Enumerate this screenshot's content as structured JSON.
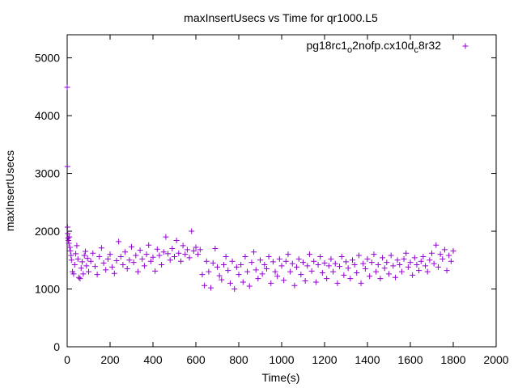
{
  "chart_data": {
    "type": "scatter",
    "title": "maxInsertUsecs vs Time for qr1000.L5",
    "xlabel": "Time(s)",
    "ylabel": "maxInsertUsecs",
    "xlim": [
      0,
      2000
    ],
    "ylim": [
      0,
      5400
    ],
    "xticks": [
      0,
      200,
      400,
      600,
      800,
      1000,
      1200,
      1400,
      1600,
      1800,
      2000
    ],
    "yticks": [
      0,
      1000,
      2000,
      3000,
      4000,
      5000
    ],
    "legend_position": "top-right",
    "grid": false,
    "marker": "plus",
    "color": "#9400d3",
    "legend": {
      "name_main": "pg18rc1",
      "name_sub1": "o",
      "name_mid": "2nofp.cx10d",
      "name_sub2": "c",
      "name_end": "8r32"
    },
    "series": [
      {
        "name": "pg18rc1_o2nofp.cx10d_c8r32",
        "points": [
          [
            0,
            4490
          ],
          [
            1,
            3120
          ],
          [
            2,
            2070
          ],
          [
            3,
            1960
          ],
          [
            4,
            1880
          ],
          [
            6,
            1840
          ],
          [
            8,
            1790
          ],
          [
            10,
            1900
          ],
          [
            12,
            1720
          ],
          [
            15,
            1660
          ],
          [
            18,
            1580
          ],
          [
            20,
            1500
          ],
          [
            25,
            1300
          ],
          [
            30,
            1260
          ],
          [
            35,
            1420
          ],
          [
            40,
            1610
          ],
          [
            45,
            1750
          ],
          [
            50,
            1520
          ],
          [
            55,
            1200
          ],
          [
            60,
            1180
          ],
          [
            65,
            1360
          ],
          [
            70,
            1470
          ],
          [
            75,
            1260
          ],
          [
            80,
            1580
          ],
          [
            85,
            1650
          ],
          [
            90,
            1400
          ],
          [
            95,
            1530
          ],
          [
            100,
            1300
          ],
          [
            110,
            1480
          ],
          [
            120,
            1620
          ],
          [
            130,
            1390
          ],
          [
            140,
            1250
          ],
          [
            150,
            1560
          ],
          [
            160,
            1710
          ],
          [
            170,
            1450
          ],
          [
            180,
            1330
          ],
          [
            190,
            1520
          ],
          [
            200,
            1600
          ],
          [
            210,
            1380
          ],
          [
            220,
            1270
          ],
          [
            230,
            1490
          ],
          [
            240,
            1820
          ],
          [
            250,
            1560
          ],
          [
            260,
            1420
          ],
          [
            270,
            1640
          ],
          [
            280,
            1350
          ],
          [
            290,
            1500
          ],
          [
            300,
            1730
          ],
          [
            310,
            1460
          ],
          [
            320,
            1580
          ],
          [
            330,
            1300
          ],
          [
            340,
            1670
          ],
          [
            350,
            1520
          ],
          [
            360,
            1400
          ],
          [
            370,
            1600
          ],
          [
            380,
            1760
          ],
          [
            390,
            1480
          ],
          [
            400,
            1550
          ],
          [
            410,
            1310
          ],
          [
            420,
            1690
          ],
          [
            430,
            1580
          ],
          [
            440,
            1420
          ],
          [
            450,
            1640
          ],
          [
            460,
            1900
          ],
          [
            470,
            1610
          ],
          [
            480,
            1500
          ],
          [
            490,
            1700
          ],
          [
            500,
            1560
          ],
          [
            510,
            1840
          ],
          [
            520,
            1620
          ],
          [
            530,
            1480
          ],
          [
            540,
            1750
          ],
          [
            550,
            1600
          ],
          [
            560,
            1680
          ],
          [
            570,
            1540
          ],
          [
            580,
            2000
          ],
          [
            590,
            1660
          ],
          [
            600,
            1720
          ],
          [
            610,
            1600
          ],
          [
            620,
            1680
          ],
          [
            630,
            1250
          ],
          [
            640,
            1060
          ],
          [
            650,
            1480
          ],
          [
            660,
            1300
          ],
          [
            670,
            1020
          ],
          [
            680,
            1450
          ],
          [
            690,
            1700
          ],
          [
            700,
            1380
          ],
          [
            710,
            1230
          ],
          [
            720,
            1160
          ],
          [
            730,
            1420
          ],
          [
            740,
            1560
          ],
          [
            750,
            1320
          ],
          [
            760,
            1100
          ],
          [
            770,
            1480
          ],
          [
            780,
            1000
          ],
          [
            790,
            1380
          ],
          [
            800,
            1250
          ],
          [
            810,
            1420
          ],
          [
            820,
            1120
          ],
          [
            830,
            1560
          ],
          [
            840,
            1300
          ],
          [
            850,
            1050
          ],
          [
            860,
            1460
          ],
          [
            870,
            1640
          ],
          [
            880,
            1330
          ],
          [
            890,
            1180
          ],
          [
            900,
            1500
          ],
          [
            910,
            1260
          ],
          [
            920,
            1420
          ],
          [
            930,
            1350
          ],
          [
            940,
            1560
          ],
          [
            950,
            1100
          ],
          [
            960,
            1470
          ],
          [
            970,
            1300
          ],
          [
            980,
            1220
          ],
          [
            990,
            1520
          ],
          [
            1000,
            1400
          ],
          [
            1010,
            1150
          ],
          [
            1020,
            1480
          ],
          [
            1030,
            1600
          ],
          [
            1040,
            1300
          ],
          [
            1050,
            1440
          ],
          [
            1060,
            1060
          ],
          [
            1070,
            1380
          ],
          [
            1080,
            1520
          ],
          [
            1090,
            1250
          ],
          [
            1100,
            1460
          ],
          [
            1110,
            1140
          ],
          [
            1120,
            1400
          ],
          [
            1130,
            1600
          ],
          [
            1140,
            1310
          ],
          [
            1150,
            1480
          ],
          [
            1160,
            1120
          ],
          [
            1170,
            1420
          ],
          [
            1180,
            1560
          ],
          [
            1190,
            1280
          ],
          [
            1200,
            1450
          ],
          [
            1210,
            1180
          ],
          [
            1220,
            1400
          ],
          [
            1230,
            1520
          ],
          [
            1240,
            1300
          ],
          [
            1250,
            1440
          ],
          [
            1260,
            1100
          ],
          [
            1270,
            1390
          ],
          [
            1280,
            1560
          ],
          [
            1290,
            1240
          ],
          [
            1300,
            1470
          ],
          [
            1310,
            1360
          ],
          [
            1320,
            1180
          ],
          [
            1330,
            1500
          ],
          [
            1340,
            1420
          ],
          [
            1350,
            1280
          ],
          [
            1360,
            1580
          ],
          [
            1370,
            1100
          ],
          [
            1380,
            1440
          ],
          [
            1390,
            1350
          ],
          [
            1400,
            1520
          ],
          [
            1410,
            1220
          ],
          [
            1420,
            1460
          ],
          [
            1430,
            1600
          ],
          [
            1440,
            1300
          ],
          [
            1450,
            1420
          ],
          [
            1460,
            1180
          ],
          [
            1470,
            1540
          ],
          [
            1480,
            1360
          ],
          [
            1490,
            1460
          ],
          [
            1500,
            1260
          ],
          [
            1510,
            1580
          ],
          [
            1520,
            1400
          ],
          [
            1530,
            1200
          ],
          [
            1540,
            1500
          ],
          [
            1550,
            1420
          ],
          [
            1560,
            1300
          ],
          [
            1570,
            1520
          ],
          [
            1580,
            1620
          ],
          [
            1590,
            1380
          ],
          [
            1600,
            1460
          ],
          [
            1610,
            1240
          ],
          [
            1620,
            1540
          ],
          [
            1630,
            1420
          ],
          [
            1640,
            1320
          ],
          [
            1650,
            1480
          ],
          [
            1660,
            1560
          ],
          [
            1670,
            1400
          ],
          [
            1680,
            1300
          ],
          [
            1690,
            1500
          ],
          [
            1700,
            1620
          ],
          [
            1710,
            1440
          ],
          [
            1720,
            1760
          ],
          [
            1730,
            1380
          ],
          [
            1740,
            1600
          ],
          [
            1750,
            1520
          ],
          [
            1760,
            1680
          ],
          [
            1770,
            1320
          ],
          [
            1780,
            1580
          ],
          [
            1790,
            1480
          ],
          [
            1800,
            1660
          ]
        ]
      }
    ]
  }
}
